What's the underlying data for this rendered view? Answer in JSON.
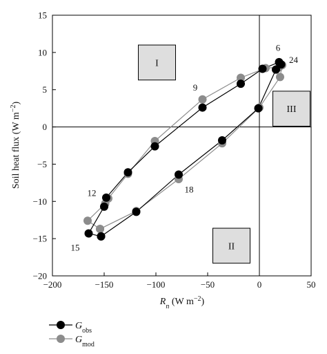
{
  "chart_data": {
    "type": "scatter",
    "xlabel": "R_n (W m^-2)",
    "ylabel": "Soil heat flux (W m^-2)",
    "xlim": [
      -200,
      50
    ],
    "ylim": [
      -20,
      15
    ],
    "xticks": [
      -200,
      -150,
      -100,
      -50,
      0,
      50
    ],
    "yticks": [
      -20,
      -15,
      -10,
      -5,
      0,
      5,
      10,
      15
    ],
    "xtick_labels": [
      "−200",
      "−150",
      "−100",
      "−50",
      "0",
      "50"
    ],
    "ytick_labels": [
      "−20",
      "−15",
      "−10",
      "−5",
      "0",
      "5",
      "10",
      "15"
    ],
    "grid": false,
    "reference_lines": {
      "x": 0,
      "y": 0
    },
    "legend_placement": "bottom-left",
    "series": [
      {
        "name": "G_obs",
        "legend_main": "G",
        "legend_sub": "obs",
        "color": "#000000",
        "x": [
          -153,
          -165,
          -150,
          -148,
          -127,
          -101,
          -55,
          -18,
          3,
          19,
          21,
          16,
          -1,
          -36,
          -78,
          -119,
          -153
        ],
        "y": [
          -14.7,
          -14.3,
          -10.7,
          -9.5,
          -6.1,
          -2.6,
          2.6,
          5.8,
          7.8,
          8.7,
          8.4,
          7.7,
          2.5,
          -1.8,
          -6.4,
          -11.4,
          -14.7
        ]
      },
      {
        "name": "G_mod",
        "legend_main": "G",
        "legend_sub": "mod",
        "color": "#8c8c8c",
        "x": [
          -154,
          -166,
          -149,
          -146,
          -127,
          -101,
          -55,
          -18,
          6,
          19,
          22,
          20,
          0,
          -36,
          -78,
          -119,
          -154
        ],
        "y": [
          -13.7,
          -12.6,
          -10.3,
          -9.6,
          -6.3,
          -1.9,
          3.7,
          6.6,
          7.9,
          8.0,
          8.3,
          6.7,
          2.6,
          -2.2,
          -7.0,
          -11.3,
          -13.7
        ]
      }
    ],
    "hour_labels": [
      {
        "text": "6",
        "x": 18,
        "y": 10.2
      },
      {
        "text": "24",
        "x": 33,
        "y": 8.6
      },
      {
        "text": "9",
        "x": -62,
        "y": 4.9
      },
      {
        "text": "12",
        "x": -162,
        "y": -9.3
      },
      {
        "text": "15",
        "x": -178,
        "y": -16.6
      },
      {
        "text": "18",
        "x": -68,
        "y": -8.8
      }
    ],
    "region_labels": [
      {
        "text": "I",
        "x0": -117,
        "x1": -81,
        "y0": 6.3,
        "y1": 11.0,
        "lx": -99,
        "ly": 8.65
      },
      {
        "text": "III",
        "x0": 13,
        "x1": 49,
        "y0": 0.1,
        "y1": 4.8,
        "lx": 31,
        "ly": 2.45
      },
      {
        "text": "II",
        "x0": -45,
        "x1": -9,
        "y0": -18.3,
        "y1": -13.6,
        "lx": -27,
        "ly": -15.95
      }
    ]
  }
}
